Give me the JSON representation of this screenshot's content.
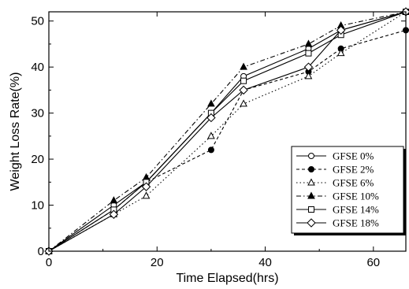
{
  "chart_data": {
    "type": "line",
    "xlabel": "Time Elapsed(hrs)",
    "ylabel": "Weight Loss Rate(%)",
    "xlim": [
      0,
      66
    ],
    "ylim": [
      0,
      52
    ],
    "xticks": [
      0,
      20,
      40,
      60
    ],
    "yticks": [
      0,
      10,
      20,
      30,
      40,
      50
    ],
    "grid": false,
    "legend_position": "right",
    "series": [
      {
        "name": "GFSE 0%",
        "marker": "circle-open",
        "dash": "solid",
        "x": [
          0,
          12,
          18,
          30,
          36,
          48,
          54,
          66
        ],
        "y": [
          0,
          10,
          15,
          30,
          38,
          44,
          48,
          52
        ]
      },
      {
        "name": "GFSE 2%",
        "marker": "circle-filled",
        "dash": "dashed",
        "x": [
          0,
          12,
          18,
          30,
          36,
          48,
          54,
          66
        ],
        "y": [
          0,
          9,
          15,
          22,
          35,
          39,
          44,
          48
        ]
      },
      {
        "name": "GFSE 6%",
        "marker": "triangle-open",
        "dash": "dotted",
        "x": [
          0,
          12,
          18,
          30,
          36,
          48,
          54,
          66
        ],
        "y": [
          0,
          8,
          12,
          25,
          32,
          38,
          43,
          52
        ]
      },
      {
        "name": "GFSE 10%",
        "marker": "triangle-filled",
        "dash": "dashdot",
        "x": [
          0,
          12,
          18,
          30,
          36,
          48,
          54,
          66
        ],
        "y": [
          0,
          11,
          16,
          32,
          40,
          45,
          49,
          52
        ]
      },
      {
        "name": "GFSE 14%",
        "marker": "square-open",
        "dash": "solid",
        "x": [
          0,
          12,
          18,
          30,
          36,
          48,
          54,
          66
        ],
        "y": [
          0,
          9,
          15,
          30,
          37,
          43,
          47,
          52
        ]
      },
      {
        "name": "GFSE 18%",
        "marker": "diamond-open",
        "dash": "solid",
        "x": [
          0,
          12,
          18,
          30,
          36,
          48,
          54,
          66
        ],
        "y": [
          0,
          8,
          14,
          29,
          35,
          40,
          48,
          52
        ]
      }
    ]
  }
}
